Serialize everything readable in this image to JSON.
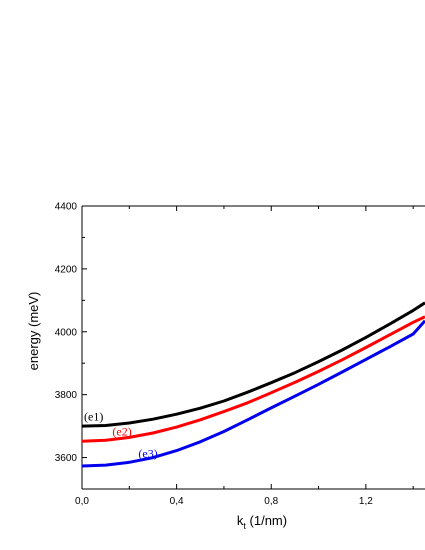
{
  "chart_data": {
    "type": "line",
    "title": "",
    "xlabel_main": "k",
    "xlabel_sub": "t",
    "xlabel_unit": " (1/nm)",
    "ylabel": "energy (meV)",
    "xlim": [
      0.0,
      1.45
    ],
    "ylim": [
      3500,
      4400
    ],
    "x_ticks": [
      0.0,
      0.4,
      0.8,
      1.2
    ],
    "x_tick_labels": [
      "0,0",
      "0,4",
      "0,8",
      "1,2"
    ],
    "y_ticks": [
      3600,
      3800,
      4000,
      4200,
      4400
    ],
    "y_tick_labels": [
      "3600",
      "3800",
      "4000",
      "4200",
      "4400"
    ],
    "grid": false,
    "series": [
      {
        "name": "(e1)",
        "color": "#000000",
        "x": [
          0.0,
          0.1,
          0.2,
          0.3,
          0.4,
          0.5,
          0.6,
          0.7,
          0.8,
          0.9,
          1.0,
          1.1,
          1.2,
          1.3,
          1.4,
          1.45
        ],
        "y": [
          3700,
          3702,
          3710,
          3722,
          3738,
          3757,
          3780,
          3808,
          3838,
          3870,
          3905,
          3942,
          3982,
          4024,
          4068,
          4092
        ]
      },
      {
        "name": "(e2)",
        "color": "#ff0000",
        "x": [
          0.0,
          0.1,
          0.2,
          0.3,
          0.4,
          0.5,
          0.6,
          0.7,
          0.8,
          0.9,
          1.0,
          1.1,
          1.2,
          1.3,
          1.4,
          1.45
        ],
        "y": [
          3652,
          3655,
          3664,
          3678,
          3697,
          3720,
          3746,
          3774,
          3806,
          3839,
          3874,
          3911,
          3950,
          3990,
          4030,
          4048
        ]
      },
      {
        "name": "(e3)",
        "color": "#0000ee",
        "x": [
          0.0,
          0.1,
          0.2,
          0.3,
          0.4,
          0.5,
          0.6,
          0.7,
          0.8,
          0.9,
          1.0,
          1.1,
          1.2,
          1.3,
          1.4,
          1.45
        ],
        "y": [
          3573,
          3576,
          3585,
          3600,
          3622,
          3650,
          3683,
          3720,
          3758,
          3795,
          3833,
          3872,
          3912,
          3952,
          3993,
          4035
        ]
      }
    ]
  }
}
